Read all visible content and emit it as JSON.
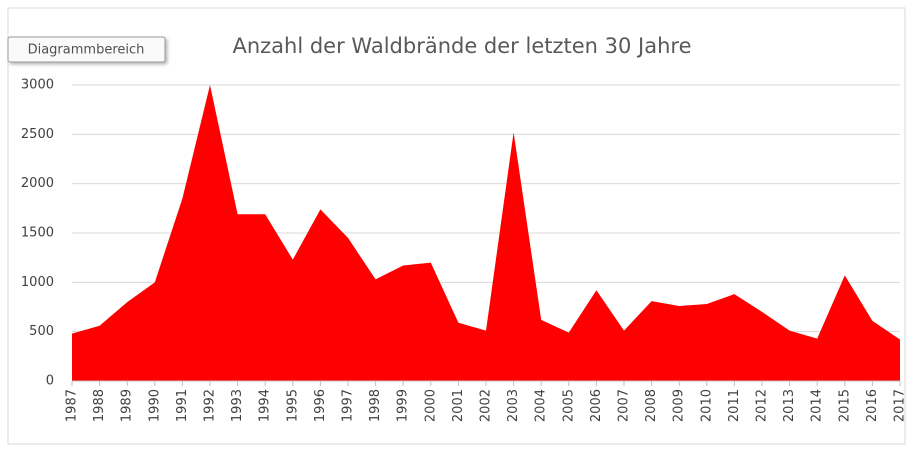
{
  "chart_data": {
    "type": "area",
    "title": "Anzahl der Waldbrände der letzten 30 Jahre",
    "tooltip": "Diagrammbereich",
    "categories": [
      "1987",
      "1988",
      "1989",
      "1990",
      "1991",
      "1992",
      "1993",
      "1994",
      "1995",
      "1996",
      "1997",
      "1998",
      "1999",
      "2000",
      "2001",
      "2002",
      "2003",
      "2004",
      "2005",
      "2006",
      "2007",
      "2008",
      "2009",
      "2010",
      "2011",
      "2012",
      "2013",
      "2014",
      "2015",
      "2016",
      "2017"
    ],
    "values": [
      480,
      560,
      800,
      1000,
      1850,
      3000,
      1690,
      1690,
      1230,
      1740,
      1450,
      1030,
      1170,
      1200,
      590,
      510,
      2520,
      620,
      490,
      920,
      510,
      810,
      760,
      780,
      880,
      700,
      510,
      430,
      1070,
      610,
      420
    ],
    "color": "#ff0000",
    "ylim": [
      0,
      3000
    ],
    "yticks": [
      0,
      500,
      1000,
      1500,
      2000,
      2500,
      3000
    ],
    "grid": true
  }
}
